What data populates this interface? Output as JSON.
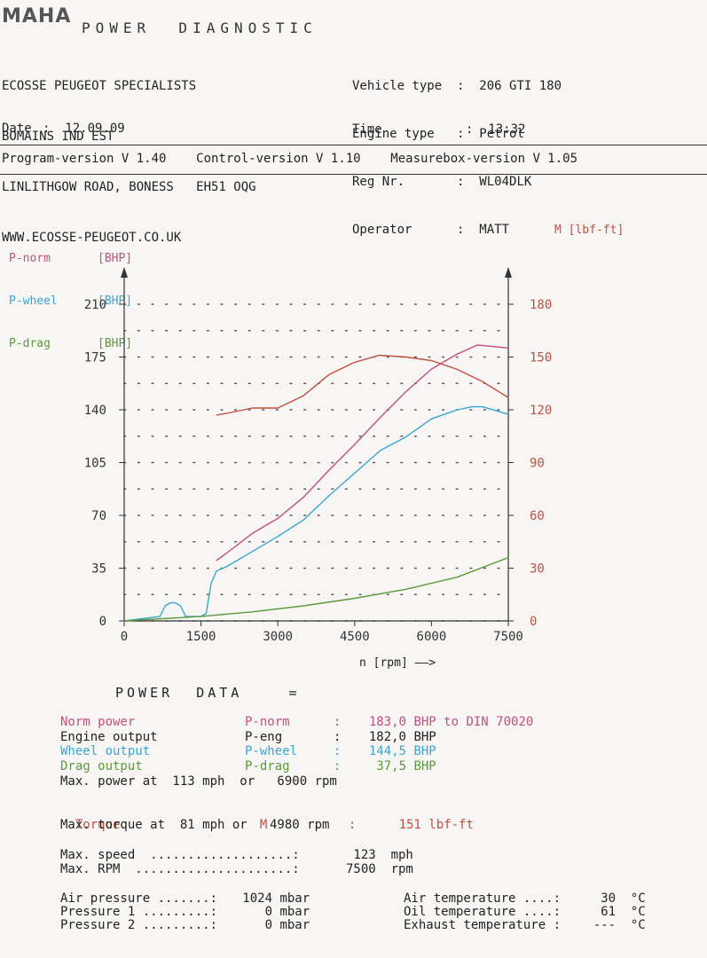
{
  "header": {
    "logo": "MAHA",
    "title": "POWER  DIAGNOSTIC",
    "company": [
      "ECOSSE PEUGEOT SPECIALISTS",
      "BOMAINS IND EST",
      "LINLITHGOW ROAD, BONESS   EH51 OQG",
      "WWW.ECOSSE-PEUGEOT.CO.UK"
    ],
    "fields": [
      {
        "label": "Vehicle type",
        "value": "206 GTI 180"
      },
      {
        "label": "Engine type",
        "value": "Petrol"
      },
      {
        "label": "Reg Nr.",
        "value": "WL04DLK"
      },
      {
        "label": "Operator",
        "value": "MATT"
      }
    ],
    "date_label": "Date",
    "date": "12.09.09",
    "time_label": "Time",
    "time": "13:32",
    "versions": "Program-version V 1.40    Control-version V 1.10    Measurebox-version V 1.05"
  },
  "legend": {
    "left": [
      {
        "name": "P-norm",
        "unit": "[BHP]",
        "color": "#c0507e"
      },
      {
        "name": "P-wheel",
        "unit": "[BHP]",
        "color": "#3aa6d2"
      },
      {
        "name": "P-drag",
        "unit": "[BHP]",
        "color": "#5a9a3a"
      }
    ],
    "right": "M [lbf-ft]"
  },
  "chart_data": {
    "type": "line",
    "xlabel": "n [rpm] ——>",
    "xlim": [
      0,
      7500
    ],
    "ylim_left": [
      0,
      210
    ],
    "ylim_right": [
      0,
      180
    ],
    "x_ticks": [
      "0",
      "1500",
      "3000",
      "4500",
      "6000",
      "7500"
    ],
    "y_left_ticks": [
      "0",
      "35",
      "70",
      "105",
      "140",
      "175",
      "210"
    ],
    "y_right_ticks": [
      "0",
      "30",
      "60",
      "90",
      "120",
      "150",
      "180"
    ],
    "grid": "dotted",
    "series": [
      {
        "name": "P-norm",
        "axis": "left",
        "color": "#c0507e",
        "x": [
          1800,
          2000,
          2500,
          3000,
          3500,
          4000,
          4500,
          5000,
          5500,
          6000,
          6500,
          6900,
          7500
        ],
        "y": [
          40,
          45,
          58,
          68,
          82,
          100,
          117,
          135,
          152,
          167,
          177,
          183,
          181
        ]
      },
      {
        "name": "P-wheel",
        "axis": "left",
        "color": "#3aa6d2",
        "x": [
          0,
          700,
          800,
          900,
          1000,
          1100,
          1200,
          1500,
          1600,
          1700,
          1800,
          2000,
          2500,
          3000,
          3500,
          4000,
          4500,
          5000,
          5500,
          6000,
          6500,
          6800,
          7000,
          7500
        ],
        "y": [
          0,
          3,
          10,
          12,
          12,
          10,
          3,
          3,
          5,
          25,
          33,
          36,
          46,
          56,
          67,
          83,
          98,
          113,
          122,
          134,
          140,
          142,
          142,
          137
        ]
      },
      {
        "name": "P-drag",
        "axis": "left",
        "color": "#5a9a3a",
        "x": [
          0,
          1500,
          2500,
          3500,
          4500,
          5500,
          6500,
          7500
        ],
        "y": [
          0,
          3,
          6,
          10,
          15,
          21,
          29,
          42
        ]
      },
      {
        "name": "M",
        "axis": "right",
        "color": "#c05040",
        "x": [
          1800,
          2000,
          2500,
          3000,
          3500,
          4000,
          4500,
          4980,
          5500,
          6000,
          6500,
          7000,
          7500
        ],
        "y": [
          117,
          118,
          121,
          121,
          128,
          140,
          147,
          151,
          150,
          148,
          143,
          136,
          127
        ]
      }
    ]
  },
  "power_data": {
    "title": "POWER  DATA    =",
    "rows": [
      {
        "label": "Norm power",
        "sym": "P-norm",
        "sep": ":",
        "val": "183,0",
        "unit": "BHP to DIN 70020",
        "color": "#c0507e"
      },
      {
        "label": "Engine output",
        "sym": "P-eng",
        "sep": ":",
        "val": "182,0",
        "unit": "BHP",
        "color": "#222"
      },
      {
        "label": "Wheel output",
        "sym": "P-wheel",
        "sep": ":",
        "val": "144,5",
        "unit": "BHP",
        "color": "#3aa6d2"
      },
      {
        "label": "Drag output",
        "sym": "P-drag",
        "sep": ":",
        "val": "37,5",
        "unit": "BHP",
        "color": "#5a9a3a"
      }
    ],
    "max_power": "Max. power at  113 mph  or   6900 rpm",
    "torque": {
      "label": "Torque",
      "sym": "M",
      "sep": ":",
      "val": "151",
      "unit": "lbf-ft"
    },
    "max_torque": "Max. torque at  81 mph or   4980 rpm",
    "max_speed": {
      "label": "Max. speed  ...................:",
      "val": "123",
      "unit": "mph"
    },
    "max_rpm": {
      "label": "Max. RPM  .....................:",
      "val": "7500",
      "unit": "rpm"
    },
    "env_left": [
      {
        "label": "Air pressure .......:",
        "val": "1024",
        "unit": "mbar"
      },
      {
        "label": "Pressure 1 .........:",
        "val": "0",
        "unit": "mbar"
      },
      {
        "label": "Pressure 2 .........:",
        "val": "0",
        "unit": "mbar"
      }
    ],
    "env_right": [
      {
        "label": "Air temperature ....:",
        "val": "30",
        "unit": "°C"
      },
      {
        "label": "Oil temperature ....:",
        "val": "61",
        "unit": "°C"
      },
      {
        "label": "Exhaust temperature :",
        "val": "---",
        "unit": "°C"
      }
    ]
  }
}
